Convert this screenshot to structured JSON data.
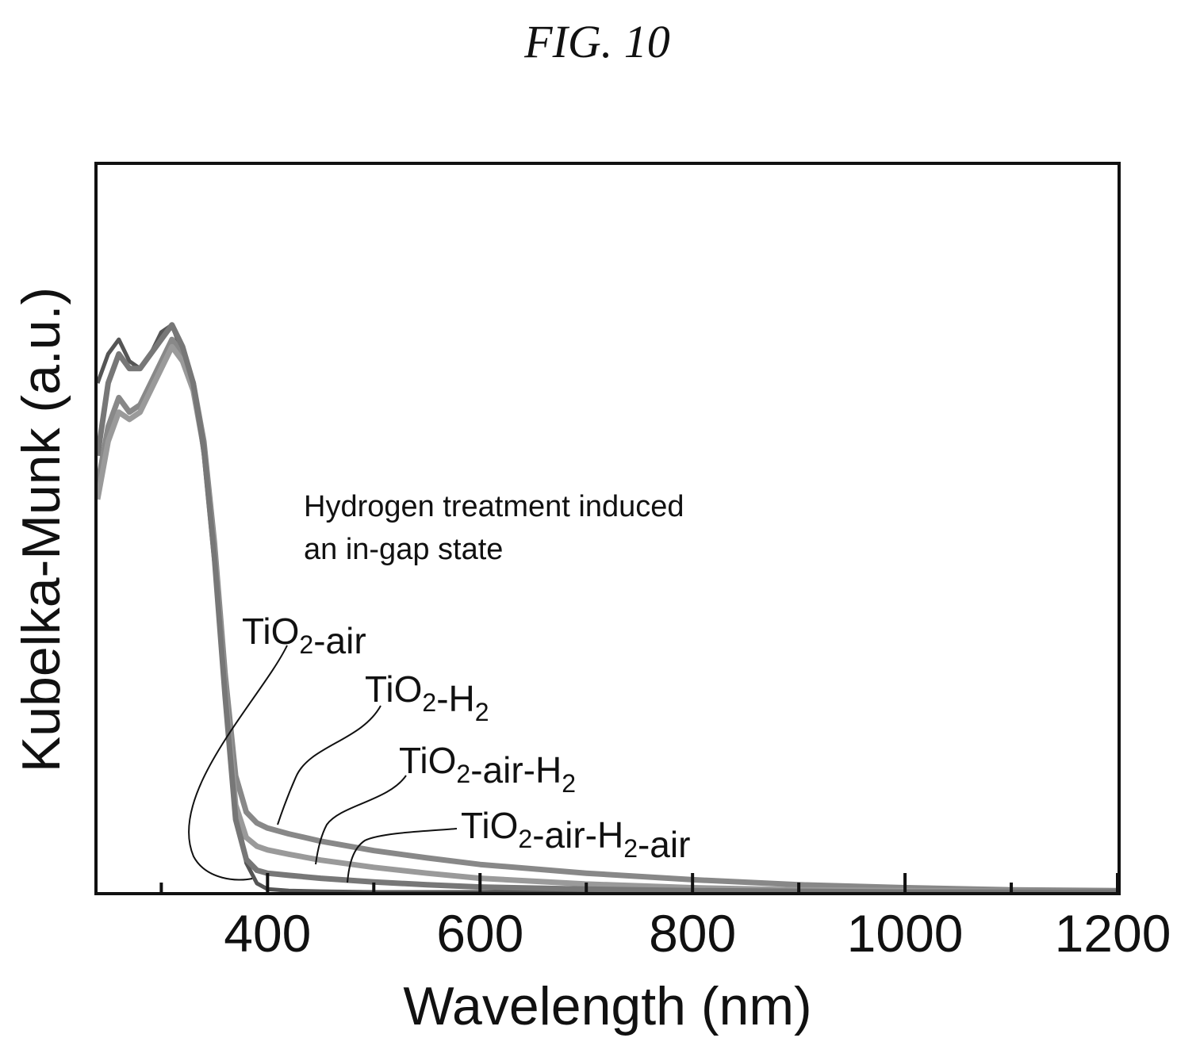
{
  "figure_label": "FIG. 10",
  "chart_data": {
    "type": "line",
    "xlabel": "Wavelength (nm)",
    "ylabel": "Kubelka-Munk (a.u.)",
    "xlim": [
      240,
      1200
    ],
    "ylim": [
      0,
      1.0
    ],
    "xticks": [
      400,
      600,
      800,
      1000,
      1200
    ],
    "xticks_minor": [
      300,
      500,
      700,
      900,
      1100
    ],
    "y_tick_labels": false,
    "grid": false,
    "annotation": {
      "line1": "Hydrogen treatment induced",
      "line2": "an in-gap state"
    },
    "series": [
      {
        "name": "TiO2-air",
        "label_main": "TiO",
        "label_sub": "2",
        "label_rest": "-air",
        "label_sub2": "",
        "label_rest2": "",
        "color": "#555555",
        "x": [
          240,
          250,
          260,
          270,
          280,
          290,
          300,
          310,
          320,
          330,
          340,
          350,
          360,
          370,
          380,
          390,
          400,
          420,
          450,
          500,
          600,
          800,
          1000,
          1200
        ],
        "y": [
          0.7,
          0.74,
          0.76,
          0.73,
          0.72,
          0.74,
          0.77,
          0.78,
          0.74,
          0.7,
          0.6,
          0.45,
          0.28,
          0.12,
          0.04,
          0.012,
          0.004,
          0.002,
          0.001,
          0.0,
          0.0,
          0.0,
          0.0,
          0.0
        ]
      },
      {
        "name": "TiO2-H2",
        "label_main": "TiO",
        "label_sub": "2",
        "label_rest": "-H",
        "label_sub2": "2",
        "label_rest2": "",
        "color": "#888888",
        "x": [
          240,
          250,
          260,
          270,
          280,
          290,
          300,
          310,
          320,
          330,
          340,
          350,
          360,
          370,
          380,
          390,
          400,
          420,
          450,
          500,
          550,
          600,
          700,
          800,
          900,
          1000,
          1100,
          1200
        ],
        "y": [
          0.56,
          0.64,
          0.68,
          0.66,
          0.67,
          0.7,
          0.73,
          0.76,
          0.74,
          0.7,
          0.62,
          0.48,
          0.3,
          0.16,
          0.11,
          0.095,
          0.088,
          0.08,
          0.07,
          0.057,
          0.047,
          0.038,
          0.026,
          0.017,
          0.01,
          0.006,
          0.003,
          0.002
        ]
      },
      {
        "name": "TiO2-air-H2",
        "label_main": "TiO",
        "label_sub": "2",
        "label_rest": "-air-H",
        "label_sub2": "2",
        "label_rest2": "",
        "color": "#9a9a9a",
        "x": [
          240,
          250,
          260,
          270,
          280,
          290,
          300,
          310,
          320,
          330,
          340,
          350,
          360,
          370,
          380,
          390,
          400,
          420,
          450,
          500,
          550,
          600,
          700,
          800,
          900,
          1000,
          1100,
          1200
        ],
        "y": [
          0.54,
          0.62,
          0.66,
          0.65,
          0.66,
          0.69,
          0.72,
          0.75,
          0.73,
          0.69,
          0.61,
          0.47,
          0.28,
          0.12,
          0.075,
          0.063,
          0.058,
          0.052,
          0.044,
          0.034,
          0.026,
          0.019,
          0.011,
          0.006,
          0.003,
          0.002,
          0.001,
          0.0
        ]
      },
      {
        "name": "TiO2-air-H2-air",
        "label_main": "TiO",
        "label_sub": "2",
        "label_rest": "-air-H",
        "label_sub2": "2",
        "label_rest2": "-air",
        "color": "#777777",
        "x": [
          240,
          250,
          260,
          270,
          280,
          290,
          300,
          310,
          320,
          330,
          340,
          350,
          360,
          370,
          380,
          390,
          400,
          420,
          450,
          500,
          550,
          600,
          700,
          800,
          900,
          1000,
          1100,
          1200
        ],
        "y": [
          0.6,
          0.7,
          0.74,
          0.72,
          0.72,
          0.74,
          0.76,
          0.78,
          0.75,
          0.7,
          0.61,
          0.46,
          0.27,
          0.1,
          0.045,
          0.03,
          0.026,
          0.023,
          0.019,
          0.014,
          0.01,
          0.007,
          0.004,
          0.002,
          0.001,
          0.0,
          0.0,
          0.0
        ]
      }
    ]
  }
}
